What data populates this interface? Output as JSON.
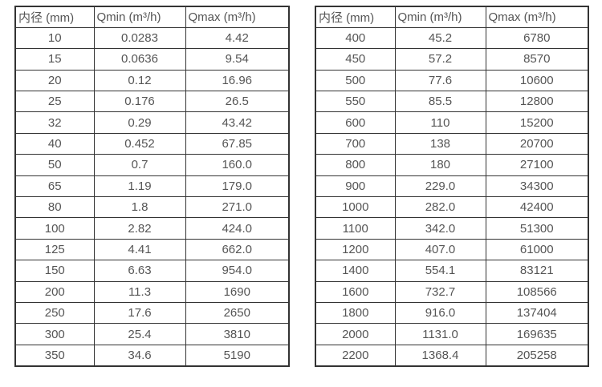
{
  "colors": {
    "background": "#ffffff",
    "text": "#555555",
    "border": "#333333"
  },
  "tables": {
    "left": {
      "headers": [
        "内径 (mm)",
        "Qmin (m³/h)",
        "Qmax (m³/h)"
      ],
      "rows": [
        [
          "10",
          "0.0283",
          "4.42"
        ],
        [
          "15",
          "0.0636",
          "9.54"
        ],
        [
          "20",
          "0.12",
          "16.96"
        ],
        [
          "25",
          "0.176",
          "26.5"
        ],
        [
          "32",
          "0.29",
          "43.42"
        ],
        [
          "40",
          "0.452",
          "67.85"
        ],
        [
          "50",
          "0.7",
          "160.0"
        ],
        [
          "65",
          "1.19",
          "179.0"
        ],
        [
          "80",
          "1.8",
          "271.0"
        ],
        [
          "100",
          "2.82",
          "424.0"
        ],
        [
          "125",
          "4.41",
          "662.0"
        ],
        [
          "150",
          "6.63",
          "954.0"
        ],
        [
          "200",
          "11.3",
          "1690"
        ],
        [
          "250",
          "17.6",
          "2650"
        ],
        [
          "300",
          "25.4",
          "3810"
        ],
        [
          "350",
          "34.6",
          "5190"
        ]
      ]
    },
    "right": {
      "headers": [
        "内径 (mm)",
        "Qmin (m³/h)",
        "Qmax (m³/h)"
      ],
      "rows": [
        [
          "400",
          "45.2",
          "6780"
        ],
        [
          "450",
          "57.2",
          "8570"
        ],
        [
          "500",
          "77.6",
          "10600"
        ],
        [
          "550",
          "85.5",
          "12800"
        ],
        [
          "600",
          "110",
          "15200"
        ],
        [
          "700",
          "138",
          "20700"
        ],
        [
          "800",
          "180",
          "27100"
        ],
        [
          "900",
          "229.0",
          "34300"
        ],
        [
          "1000",
          "282.0",
          "42400"
        ],
        [
          "1100",
          "342.0",
          "51300"
        ],
        [
          "1200",
          "407.0",
          "61000"
        ],
        [
          "1400",
          "554.1",
          "83121"
        ],
        [
          "1600",
          "732.7",
          "108566"
        ],
        [
          "1800",
          "916.0",
          "137404"
        ],
        [
          "2000",
          "1131.0",
          "169635"
        ],
        [
          "2200",
          "1368.4",
          "205258"
        ]
      ]
    }
  }
}
